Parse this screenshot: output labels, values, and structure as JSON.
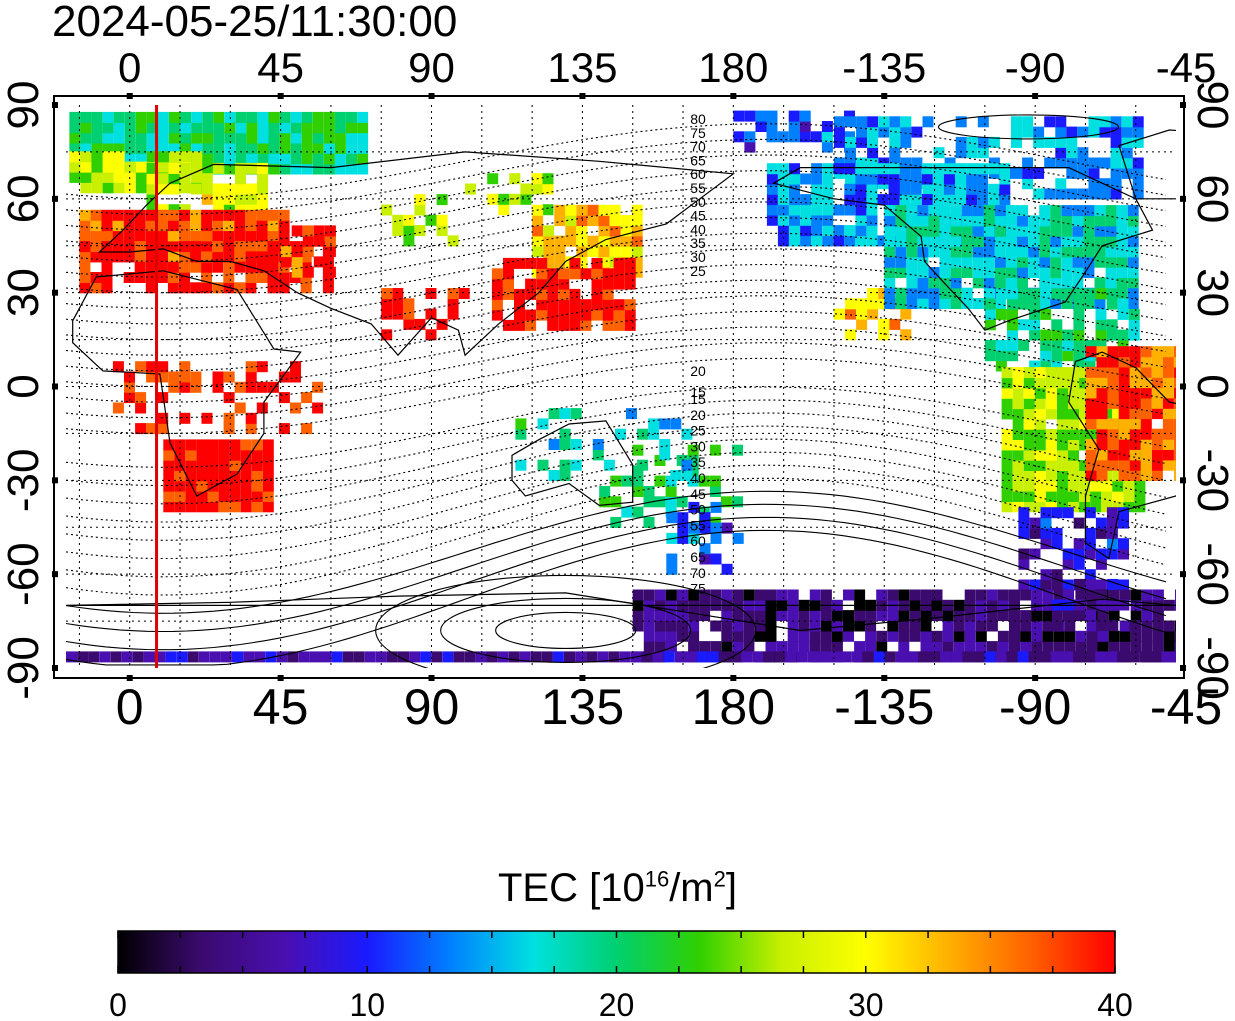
{
  "title": "2024-05-25/11:30:00",
  "map": {
    "x_ticks_top": [
      "0",
      "45",
      "90",
      "135",
      "180",
      "-135",
      "-90",
      "-45"
    ],
    "x_ticks_bottom": [
      "0",
      "45",
      "90",
      "135",
      "180",
      "-135",
      "-90",
      "-45"
    ],
    "y_ticks_left": [
      "90",
      "60",
      "30",
      "0",
      "-30",
      "-60",
      "-90"
    ],
    "y_ticks_right": [
      "90",
      "60",
      "30",
      "0",
      "-30",
      "-60",
      "-90"
    ],
    "lon_range": [
      -19,
      312
    ],
    "lat_range": [
      -90,
      90
    ],
    "contour_labels_north": [
      "80",
      "75",
      "70",
      "65",
      "60",
      "55",
      "50",
      "45",
      "40",
      "35",
      "30",
      "25",
      "20",
      "15"
    ],
    "contour_labels_south": [
      "15",
      "20",
      "25",
      "30",
      "35",
      "40",
      "45",
      "50",
      "55",
      "60",
      "65",
      "70",
      "75"
    ],
    "terminator_longitude": 8,
    "terminator_color": "#e00000",
    "grid": true
  },
  "colorbar": {
    "label_text": "TEC  [10",
    "label_exp": "16",
    "label_unit": "/m",
    "label_exp2": "2",
    "label_close": "]",
    "tick_labels": [
      "0",
      "10",
      "20",
      "30",
      "40"
    ],
    "range": [
      0,
      40
    ],
    "colormap": [
      "#000000",
      "#3a0a6e",
      "#4a0fb0",
      "#1a1aff",
      "#0080ff",
      "#00e0e0",
      "#00d070",
      "#30d000",
      "#c8f000",
      "#ffff00",
      "#ffb000",
      "#ff6000",
      "#ff0000"
    ]
  }
}
